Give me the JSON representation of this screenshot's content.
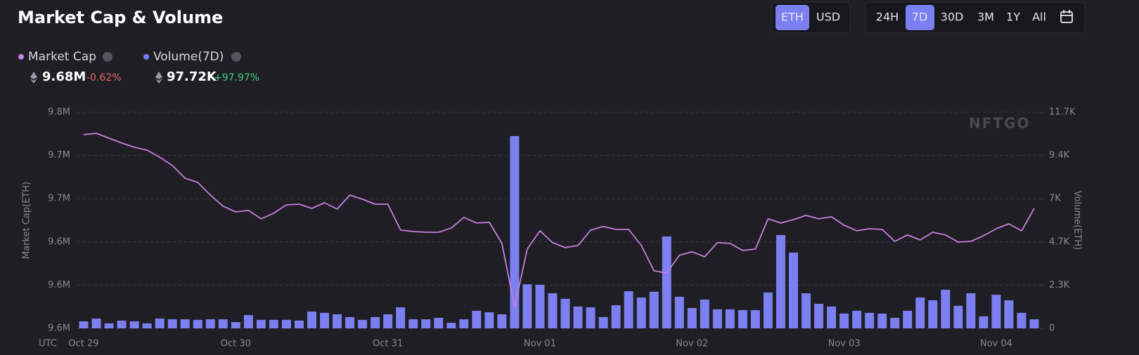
{
  "controls": {
    "currency": [
      "ETH",
      "USD"
    ],
    "currency_selected": 0,
    "ranges": [
      "24H",
      "7D",
      "30D",
      "3M",
      "1Y",
      "All"
    ],
    "range_selected": 1
  },
  "stats": [
    {
      "value": "9.68M",
      "change": "-0.62%"
    },
    {
      "value": "97.72K",
      "change": "+97.97%"
    }
  ],
  "watermark": "NFTGO",
  "chart_data": {
    "type": "combo",
    "title": "Market Cap & Volume",
    "x_label": "UTC",
    "y_label": "Market Cap(ETH)",
    "y2_label": "Volume(ETH)",
    "categories": [
      "Oct 29",
      null,
      null,
      null,
      null,
      null,
      null,
      null,
      null,
      null,
      null,
      null,
      "Oct 30",
      null,
      null,
      null,
      null,
      null,
      null,
      null,
      null,
      null,
      null,
      null,
      "Oct 31",
      null,
      null,
      null,
      null,
      null,
      null,
      null,
      null,
      null,
      null,
      null,
      "Nov 01",
      null,
      null,
      null,
      null,
      null,
      null,
      null,
      null,
      null,
      null,
      null,
      "Nov 02",
      null,
      null,
      null,
      null,
      null,
      null,
      null,
      null,
      null,
      null,
      null,
      "Nov 03",
      null,
      null,
      null,
      null,
      null,
      null,
      null,
      null,
      null,
      null,
      null,
      "Nov 04",
      null,
      null,
      null
    ],
    "series": [
      {
        "name": "Market Cap",
        "type": "line",
        "color": "#c77fdf",
        "values": [
          9730300,
          9731500,
          9727200,
          9722900,
          9719200,
          9716700,
          9710500,
          9703100,
          9692000,
          9688300,
          9677200,
          9667400,
          9662400,
          9663700,
          9656300,
          9661200,
          9668600,
          9669200,
          9665500,
          9670400,
          9664900,
          9677200,
          9673500,
          9669200,
          9669200,
          9646400,
          9645100,
          9644500,
          9644500,
          9648200,
          9657500,
          9652600,
          9653200,
          9634700,
          9578500,
          9629700,
          9645800,
          9635300,
          9631000,
          9632800,
          9646400,
          9649500,
          9647000,
          9647000,
          9632800,
          9610600,
          9608700,
          9624200,
          9627300,
          9622900,
          9635300,
          9634700,
          9628500,
          9629700,
          9656300,
          9652600,
          9655600,
          9659300,
          9656300,
          9658100,
          9650700,
          9645800,
          9647600,
          9647000,
          9636500,
          9642100,
          9637700,
          9644500,
          9642100,
          9635900,
          9636500,
          9641400,
          9647600,
          9651900,
          9645800,
          9665500
        ]
      },
      {
        "name": "Volume(7D)",
        "type": "bar",
        "axis": "y2",
        "color": "#7b7ff0",
        "values": [
          380,
          530,
          270,
          420,
          380,
          270,
          530,
          490,
          490,
          460,
          490,
          490,
          340,
          720,
          460,
          460,
          460,
          420,
          910,
          840,
          760,
          610,
          460,
          610,
          760,
          1140,
          490,
          490,
          570,
          300,
          490,
          950,
          870,
          760,
          10410,
          2390,
          2360,
          1900,
          1600,
          1180,
          1140,
          610,
          1250,
          2010,
          1670,
          1980,
          4980,
          1710,
          1100,
          1560,
          1030,
          1030,
          990,
          990,
          1940,
          5050,
          4100,
          1900,
          1330,
          1180,
          800,
          950,
          840,
          800,
          570,
          950,
          1670,
          1520,
          2090,
          1220,
          1900,
          650,
          1820,
          1520,
          840,
          490
        ]
      }
    ],
    "ylim": [
      9560000,
      9750000
    ],
    "yticks": [
      {
        "value": 9560000,
        "label": "9.6M"
      },
      {
        "value": 9598000,
        "label": "9.6M"
      },
      {
        "value": 9636000,
        "label": "9.6M"
      },
      {
        "value": 9674000,
        "label": "9.7M"
      },
      {
        "value": 9712000,
        "label": "9.7M"
      },
      {
        "value": 9750000,
        "label": "9.8M"
      }
    ],
    "y2lim": [
      0,
      11700
    ],
    "y2ticks": [
      0,
      {
        "value": 2340,
        "label": "2.3K"
      },
      {
        "value": 4680,
        "label": "4.7K"
      },
      {
        "value": 7020,
        "label": "7K"
      },
      {
        "value": 9360,
        "label": "9.4K"
      },
      {
        "value": 11700,
        "label": "11.7K"
      }
    ],
    "grid": true
  }
}
